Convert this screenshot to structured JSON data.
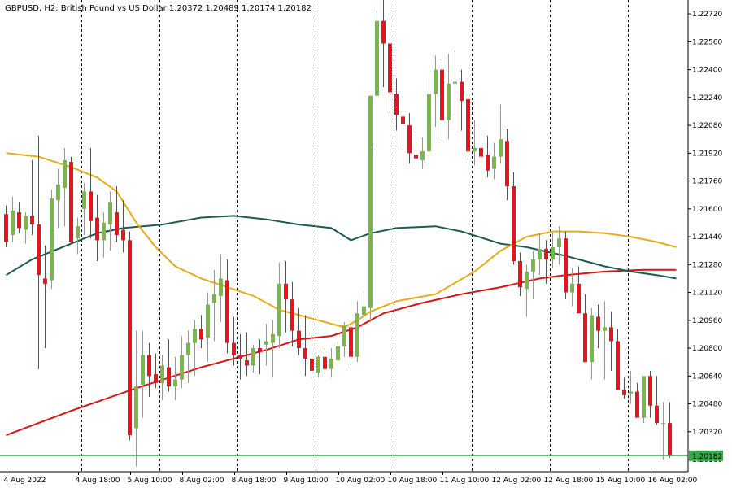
{
  "chart_data": {
    "type": "candlestick",
    "title": "GBPUSD, H2:  British Pound vs US Dollar  1.20372 1.20489 1.20174 1.20182",
    "symbol": "GBPUSD",
    "timeframe": "H2",
    "instrument": "British Pound vs US Dollar",
    "ohlc_last": {
      "open": 1.20372,
      "high": 1.20489,
      "low": 1.20174,
      "close": 1.20182
    },
    "ylim": [
      1.2009,
      1.228
    ],
    "y_ticks": [
      "1.22720",
      "1.22560",
      "1.22400",
      "1.22240",
      "1.22080",
      "1.21920",
      "1.21760",
      "1.21600",
      "1.21440",
      "1.21280",
      "1.21120",
      "1.20960",
      "1.20800",
      "1.20640",
      "1.20480",
      "1.20320",
      "1.20160"
    ],
    "x_labels": [
      {
        "label": "4 Aug 2022",
        "bar": 0
      },
      {
        "label": "4 Aug 18:00",
        "bar": 11
      },
      {
        "label": "5 Aug 10:00",
        "bar": 19
      },
      {
        "label": "8 Aug 02:00",
        "bar": 27
      },
      {
        "label": "8 Aug 18:00",
        "bar": 35
      },
      {
        "label": "9 Aug 10:00",
        "bar": 43
      },
      {
        "label": "10 Aug 02:00",
        "bar": 51
      },
      {
        "label": "10 Aug 18:00",
        "bar": 59
      },
      {
        "label": "11 Aug 10:00",
        "bar": 67
      },
      {
        "label": "12 Aug 02:00",
        "bar": 75
      },
      {
        "label": "12 Aug 18:00",
        "bar": 83
      },
      {
        "label": "15 Aug 10:00",
        "bar": 91
      },
      {
        "label": "16 Aug 02:00",
        "bar": 99
      }
    ],
    "vlines_bars": [
      11,
      23,
      35,
      47,
      59,
      71,
      83,
      95
    ],
    "current_price_label": "1.20182",
    "colors": {
      "bull": "#7ab648",
      "bear": "#e8141c",
      "ma_fast": "#e6ac1a",
      "ma_mid": "#1e5a50",
      "ma_slow": "#d41616",
      "price_line": "#3aa84a",
      "price_label_bg": "#3aa84a",
      "grid": "#000000"
    },
    "candles": [
      [
        1.2157,
        1.2162,
        1.2138,
        1.2141
      ],
      [
        1.2145,
        1.2167,
        1.2141,
        1.2159
      ],
      [
        1.2158,
        1.2164,
        1.2146,
        1.2149
      ],
      [
        1.2148,
        1.2158,
        1.214,
        1.2156
      ],
      [
        1.2156,
        1.2188,
        1.2145,
        1.2151
      ],
      [
        1.2151,
        1.2202,
        1.2068,
        1.2122
      ],
      [
        1.212,
        1.2139,
        1.208,
        1.2117
      ],
      [
        1.2119,
        1.2171,
        1.2114,
        1.2166
      ],
      [
        1.2165,
        1.2183,
        1.2149,
        1.2174
      ],
      [
        1.2172,
        1.2195,
        1.215,
        1.2188
      ],
      [
        1.2187,
        1.219,
        1.214,
        1.2141
      ],
      [
        1.2143,
        1.2155,
        1.2134,
        1.215
      ],
      [
        1.216,
        1.2175,
        1.2145,
        1.217
      ],
      [
        1.217,
        1.2195,
        1.2143,
        1.2153
      ],
      [
        1.2155,
        1.2168,
        1.213,
        1.2142
      ],
      [
        1.2142,
        1.2158,
        1.2132,
        1.2152
      ],
      [
        1.2151,
        1.217,
        1.2136,
        1.2164
      ],
      [
        1.2158,
        1.2173,
        1.2141,
        1.2145
      ],
      [
        1.2148,
        1.2165,
        1.2135,
        1.2142
      ],
      [
        1.2142,
        1.2147,
        1.2027,
        1.203
      ],
      [
        1.2034,
        1.209,
        1.2012,
        1.2058
      ],
      [
        1.2059,
        1.209,
        1.204,
        1.2076
      ],
      [
        1.2076,
        1.2083,
        1.2052,
        1.2064
      ],
      [
        1.2065,
        1.2077,
        1.2057,
        1.206
      ],
      [
        1.206,
        1.2076,
        1.205,
        1.207
      ],
      [
        1.2069,
        1.2085,
        1.2055,
        1.2058
      ],
      [
        1.2058,
        1.2075,
        1.205,
        1.2062
      ],
      [
        1.2062,
        1.2087,
        1.2057,
        1.2076
      ],
      [
        1.2076,
        1.209,
        1.206,
        1.2083
      ],
      [
        1.2083,
        1.2096,
        1.2064,
        1.2091
      ],
      [
        1.2091,
        1.2099,
        1.208,
        1.2085
      ],
      [
        1.2086,
        1.2112,
        1.2072,
        1.2105
      ],
      [
        1.2106,
        1.2125,
        1.2084,
        1.2111
      ],
      [
        1.211,
        1.2134,
        1.2095,
        1.212
      ],
      [
        1.2119,
        1.2131,
        1.2077,
        1.2083
      ],
      [
        1.2083,
        1.2098,
        1.207,
        1.2076
      ],
      [
        1.2076,
        1.2088,
        1.2062,
        1.2074
      ],
      [
        1.2073,
        1.2089,
        1.2064,
        1.207
      ],
      [
        1.207,
        1.2082,
        1.2066,
        1.208
      ],
      [
        1.208,
        1.2085,
        1.2065,
        1.2078
      ],
      [
        1.2082,
        1.2094,
        1.207,
        1.2084
      ],
      [
        1.2083,
        1.2096,
        1.2063,
        1.2088
      ],
      [
        1.2087,
        1.2129,
        1.208,
        1.2117
      ],
      [
        1.2117,
        1.213,
        1.2089,
        1.2108
      ],
      [
        1.2108,
        1.2118,
        1.2081,
        1.209
      ],
      [
        1.209,
        1.2103,
        1.2076,
        1.208
      ],
      [
        1.208,
        1.2099,
        1.2064,
        1.2074
      ],
      [
        1.2074,
        1.2094,
        1.2063,
        1.2067
      ],
      [
        1.2066,
        1.2076,
        1.2063,
        1.2075
      ],
      [
        1.2075,
        1.208,
        1.2065,
        1.2068
      ],
      [
        1.2068,
        1.208,
        1.2063,
        1.2074
      ],
      [
        1.2073,
        1.2084,
        1.2067,
        1.2081
      ],
      [
        1.2081,
        1.2095,
        1.2075,
        1.2093
      ],
      [
        1.2092,
        1.2094,
        1.207,
        1.2075
      ],
      [
        1.2075,
        1.2107,
        1.2072,
        1.21
      ],
      [
        1.2099,
        1.2112,
        1.2096,
        1.2104
      ],
      [
        1.2103,
        1.2225,
        1.2095,
        1.2225
      ],
      [
        1.2225,
        1.2274,
        1.2195,
        1.2268
      ],
      [
        1.2268,
        1.2282,
        1.223,
        1.2255
      ],
      [
        1.2255,
        1.227,
        1.2215,
        1.2227
      ],
      [
        1.2226,
        1.2235,
        1.2205,
        1.2214
      ],
      [
        1.2213,
        1.2225,
        1.2196,
        1.2209
      ],
      [
        1.2208,
        1.2215,
        1.2186,
        1.2192
      ],
      [
        1.2191,
        1.2205,
        1.2183,
        1.2189
      ],
      [
        1.2188,
        1.2201,
        1.2183,
        1.2193
      ],
      [
        1.2193,
        1.2235,
        1.2186,
        1.2226
      ],
      [
        1.2226,
        1.2248,
        1.2207,
        1.224
      ],
      [
        1.224,
        1.2246,
        1.2201,
        1.2211
      ],
      [
        1.2211,
        1.2249,
        1.22,
        1.2232
      ],
      [
        1.2232,
        1.2251,
        1.2213,
        1.2233
      ],
      [
        1.2233,
        1.224,
        1.2205,
        1.2222
      ],
      [
        1.2223,
        1.2226,
        1.2188,
        1.2193
      ],
      [
        1.2193,
        1.2211,
        1.2185,
        1.2195
      ],
      [
        1.2195,
        1.2207,
        1.2183,
        1.219
      ],
      [
        1.2191,
        1.2202,
        1.2178,
        1.2182
      ],
      [
        1.2183,
        1.2198,
        1.2177,
        1.219
      ],
      [
        1.219,
        1.222,
        1.2186,
        1.22
      ],
      [
        1.2199,
        1.2206,
        1.2165,
        1.2173
      ],
      [
        1.2173,
        1.2181,
        1.2128,
        1.213
      ],
      [
        1.213,
        1.2135,
        1.211,
        1.2115
      ],
      [
        1.2114,
        1.2128,
        1.2098,
        1.2124
      ],
      [
        1.2124,
        1.2136,
        1.2108,
        1.2131
      ],
      [
        1.2131,
        1.2146,
        1.2122,
        1.2137
      ],
      [
        1.2137,
        1.2142,
        1.2117,
        1.2131
      ],
      [
        1.2131,
        1.2146,
        1.2126,
        1.2138
      ],
      [
        1.2138,
        1.215,
        1.2128,
        1.2143
      ],
      [
        1.2143,
        1.2147,
        1.2108,
        1.2112
      ],
      [
        1.2112,
        1.2126,
        1.2104,
        1.2117
      ],
      [
        1.2117,
        1.2127,
        1.21,
        1.21
      ],
      [
        1.21,
        1.2111,
        1.2072,
        1.2072
      ],
      [
        1.2072,
        1.2103,
        1.2062,
        1.2099
      ],
      [
        1.2098,
        1.2105,
        1.208,
        1.209
      ],
      [
        1.209,
        1.2107,
        1.2062,
        1.2092
      ],
      [
        1.2092,
        1.2101,
        1.2067,
        1.2084
      ],
      [
        1.2084,
        1.2091,
        1.2056,
        1.2056
      ],
      [
        1.2056,
        1.2063,
        1.2051,
        1.2053
      ],
      [
        1.2054,
        1.2067,
        1.2048,
        1.2055
      ],
      [
        1.2055,
        1.206,
        1.204,
        1.204
      ],
      [
        1.204,
        1.2064,
        1.2037,
        1.2064
      ],
      [
        1.2064,
        1.2067,
        1.204,
        1.2047
      ],
      [
        1.2047,
        1.2064,
        1.2036,
        1.2037
      ],
      [
        1.2037,
        1.2049,
        1.2016,
        1.2037
      ],
      [
        1.2037,
        1.2049,
        1.2017,
        1.2018
      ]
    ],
    "ma_fast": [
      [
        0,
        1.2192
      ],
      [
        5,
        1.219
      ],
      [
        10,
        1.2184
      ],
      [
        14,
        1.2178
      ],
      [
        17,
        1.217
      ],
      [
        20,
        1.2152
      ],
      [
        23,
        1.2138
      ],
      [
        26,
        1.2127
      ],
      [
        30,
        1.212
      ],
      [
        34,
        1.2115
      ],
      [
        38,
        1.211
      ],
      [
        42,
        1.2102
      ],
      [
        46,
        1.2098
      ],
      [
        50,
        1.2094
      ],
      [
        52,
        1.2092
      ],
      [
        54,
        1.2096
      ],
      [
        56,
        1.2101
      ],
      [
        60,
        1.2107
      ],
      [
        66,
        1.2111
      ],
      [
        72,
        1.2124
      ],
      [
        76,
        1.2136
      ],
      [
        80,
        1.2144
      ],
      [
        84,
        1.2147
      ],
      [
        88,
        1.2147
      ],
      [
        92,
        1.2146
      ],
      [
        96,
        1.2144
      ],
      [
        100,
        1.2141
      ],
      [
        103,
        1.2138
      ]
    ],
    "ma_mid": [
      [
        0,
        1.2122
      ],
      [
        4,
        1.2131
      ],
      [
        10,
        1.214
      ],
      [
        14,
        1.2146
      ],
      [
        18,
        1.2149
      ],
      [
        24,
        1.2151
      ],
      [
        30,
        1.2155
      ],
      [
        35,
        1.2156
      ],
      [
        40,
        1.2154
      ],
      [
        45,
        1.2151
      ],
      [
        50,
        1.2149
      ],
      [
        53,
        1.2142
      ],
      [
        56,
        1.2146
      ],
      [
        60,
        1.2149
      ],
      [
        66,
        1.215
      ],
      [
        70,
        1.2147
      ],
      [
        76,
        1.214
      ],
      [
        80,
        1.2138
      ],
      [
        86,
        1.2133
      ],
      [
        92,
        1.2127
      ],
      [
        96,
        1.2124
      ],
      [
        100,
        1.2122
      ],
      [
        103,
        1.212
      ]
    ],
    "ma_slow": [
      [
        0,
        1.203
      ],
      [
        10,
        1.2044
      ],
      [
        20,
        1.2057
      ],
      [
        30,
        1.2069
      ],
      [
        40,
        1.2079
      ],
      [
        45,
        1.2085
      ],
      [
        50,
        1.2087
      ],
      [
        54,
        1.2092
      ],
      [
        58,
        1.21
      ],
      [
        64,
        1.2106
      ],
      [
        70,
        1.2111
      ],
      [
        76,
        1.2115
      ],
      [
        82,
        1.212
      ],
      [
        86,
        1.2122
      ],
      [
        92,
        1.2124
      ],
      [
        98,
        1.2125
      ],
      [
        103,
        1.2125
      ]
    ]
  }
}
